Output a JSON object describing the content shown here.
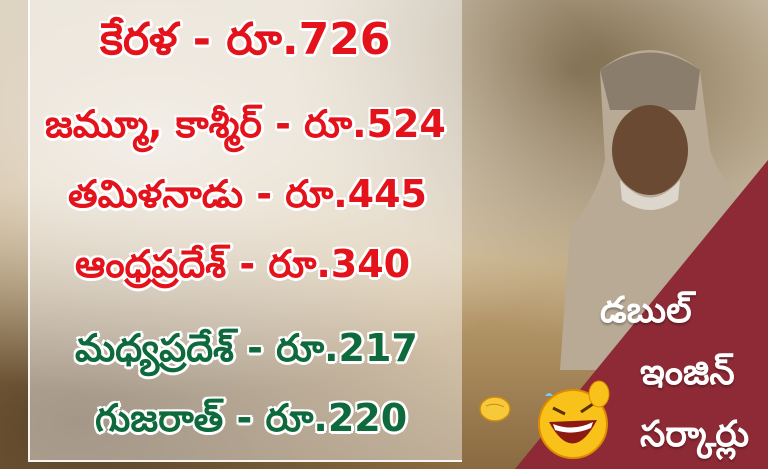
{
  "rows": [
    {
      "state": "కేరళ",
      "wage": "రూ.726",
      "color": "#e3121b"
    },
    {
      "state": "జమ్మూ, కాశ్మీర్",
      "wage": "రూ.524",
      "color": "#e3121b"
    },
    {
      "state": "తమిళనాడు",
      "wage": "రూ.445",
      "color": "#e3121b"
    },
    {
      "state": "ఆంధ్రప్రదేశ్",
      "wage": "రూ.340",
      "color": "#e3121b"
    },
    {
      "state": "మధ్యప్రదేశ్",
      "wage": "రూ.217",
      "color": "#0e6a3c"
    },
    {
      "state": "గుజరాత్",
      "wage": "రూ.220",
      "color": "#0e6a3c"
    }
  ],
  "separator": "-",
  "slogan": {
    "line1": "డబుల్",
    "line2": "ఇంజిన్",
    "line3": "సర్కార్లు"
  },
  "banner_color": "#8e2a35",
  "icons": [
    "laughing-emoji-icon",
    "pointing-hand-icon"
  ]
}
